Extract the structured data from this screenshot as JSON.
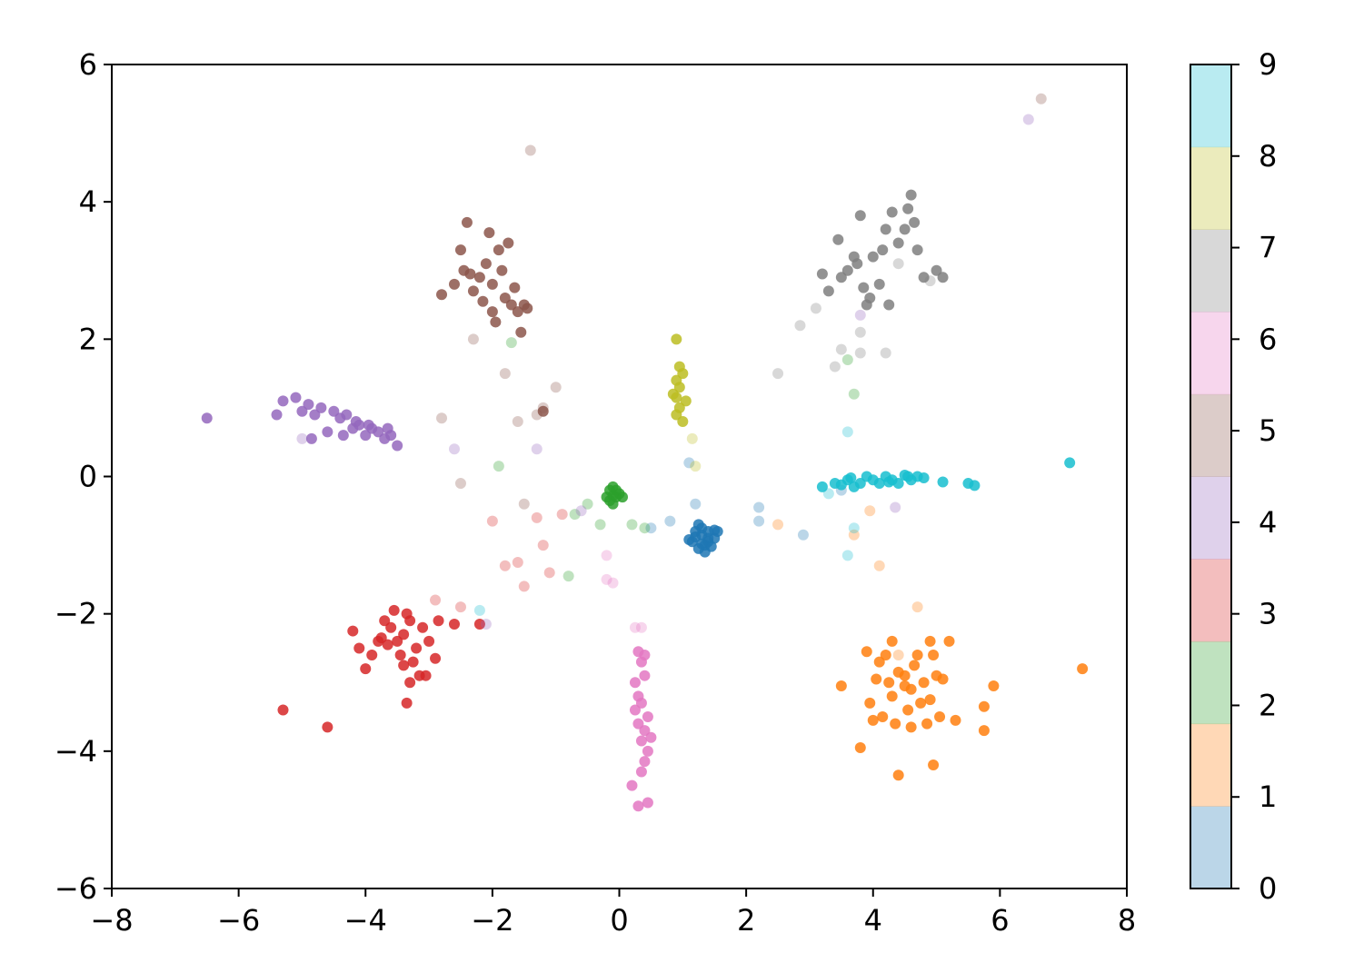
{
  "chart_data": {
    "type": "scatter",
    "xlim": [
      -8,
      8
    ],
    "ylim": [
      -6,
      6
    ],
    "xticks": [
      {
        "value": -8,
        "label": "−8"
      },
      {
        "value": -6,
        "label": "−6"
      },
      {
        "value": -4,
        "label": "−4"
      },
      {
        "value": -2,
        "label": "−2"
      },
      0,
      2,
      4,
      6,
      8
    ],
    "yticks": [
      {
        "value": -6,
        "label": "−6"
      },
      {
        "value": -4,
        "label": "−4"
      },
      {
        "value": -2,
        "label": "−2"
      },
      0,
      2,
      4,
      6
    ],
    "colorbar": {
      "lim": [
        0,
        9
      ],
      "ticks": [
        0,
        1,
        2,
        3,
        4,
        5,
        6,
        7,
        8,
        9
      ],
      "opacity": 0.3,
      "colors": [
        "#1f77b4",
        "#ff7f0e",
        "#2ca02c",
        "#d62728",
        "#9467bd",
        "#8c564b",
        "#e377c2",
        "#7f7f7f",
        "#bcbd22",
        "#17becf"
      ]
    },
    "series": [
      {
        "color": "#1f77b4",
        "opacity": 0.85,
        "x": [
          1.2,
          1.3,
          1.4,
          1.5,
          1.35,
          1.25,
          1.45,
          1.15,
          1.3,
          1.4,
          1.55,
          1.2,
          1.35,
          1.5,
          1.3,
          1.4,
          1.1,
          1.25
        ],
        "y": [
          -0.8,
          -0.85,
          -0.9,
          -0.78,
          -1.0,
          -1.05,
          -1.02,
          -0.95,
          -0.75,
          -0.95,
          -0.8,
          -0.88,
          -1.1,
          -0.9,
          -0.98,
          -0.8,
          -0.92,
          -0.7
        ]
      },
      {
        "color": "#1f77b4",
        "opacity": 0.3,
        "x": [
          0.8,
          1.2,
          2.2,
          2.2,
          1.1,
          0.5,
          2.9,
          3.5
        ],
        "y": [
          -0.65,
          -0.4,
          -0.45,
          -0.65,
          0.2,
          -0.75,
          -0.85,
          -0.2
        ]
      },
      {
        "color": "#ff7f0e",
        "opacity": 0.85,
        "x": [
          4.3,
          4.5,
          4.7,
          4.9,
          5.0,
          4.4,
          4.6,
          4.8,
          4.2,
          4.1,
          3.9,
          4.0,
          4.3,
          4.5,
          5.1,
          5.2,
          4.95,
          4.65,
          4.35,
          4.75,
          5.05,
          4.85,
          4.55,
          4.25,
          3.95,
          4.15,
          5.3,
          5.75,
          4.05,
          4.9,
          4.6,
          7.3,
          5.9,
          3.5,
          3.8,
          4.4,
          4.95,
          5.75
        ],
        "y": [
          -2.4,
          -2.9,
          -2.6,
          -2.4,
          -2.9,
          -2.85,
          -3.1,
          -3.0,
          -2.6,
          -2.7,
          -2.55,
          -3.55,
          -3.2,
          -3.05,
          -2.95,
          -2.4,
          -2.6,
          -2.75,
          -3.6,
          -3.3,
          -3.5,
          -3.6,
          -3.4,
          -3.0,
          -3.3,
          -3.5,
          -3.55,
          -3.35,
          -2.95,
          -3.25,
          -3.65,
          -2.8,
          -3.05,
          -3.05,
          -3.95,
          -4.35,
          -4.2,
          -3.7
        ]
      },
      {
        "color": "#ff7f0e",
        "opacity": 0.3,
        "x": [
          4.4,
          4.7,
          3.95,
          2.5,
          4.1,
          3.7
        ],
        "y": [
          -2.6,
          -1.9,
          -0.5,
          -0.7,
          -1.3,
          -0.85
        ]
      },
      {
        "color": "#2ca02c",
        "opacity": 0.85,
        "x": [
          -0.15,
          -0.1,
          -0.05,
          0.0,
          -0.2,
          -0.1,
          0.05,
          -0.15,
          -0.05,
          -0.1
        ],
        "y": [
          -0.2,
          -0.15,
          -0.3,
          -0.25,
          -0.3,
          -0.4,
          -0.3,
          -0.35,
          -0.2,
          -0.28
        ]
      },
      {
        "color": "#2ca02c",
        "opacity": 0.3,
        "x": [
          -0.5,
          -0.3,
          0.2,
          0.4,
          -0.8,
          -1.9,
          3.6,
          3.7,
          -1.7,
          -0.7
        ],
        "y": [
          -0.4,
          -0.7,
          -0.7,
          -0.75,
          -1.45,
          0.15,
          1.7,
          1.2,
          1.95,
          -0.55
        ]
      },
      {
        "color": "#d62728",
        "opacity": 0.85,
        "x": [
          -3.4,
          -3.3,
          -3.5,
          -3.6,
          -3.2,
          -3.1,
          -3.7,
          -3.8,
          -3.45,
          -3.25,
          -3.55,
          -3.0,
          -2.9,
          -3.9,
          -4.0,
          -4.2,
          -3.35,
          -3.15,
          -3.65,
          -3.4,
          -2.85,
          -3.75,
          -4.1,
          -3.3,
          -3.05,
          -5.3,
          -4.6,
          -2.2,
          -2.6,
          -3.35
        ],
        "y": [
          -2.3,
          -2.1,
          -2.4,
          -2.2,
          -2.5,
          -2.2,
          -2.1,
          -2.4,
          -2.6,
          -2.7,
          -1.95,
          -2.4,
          -2.65,
          -2.6,
          -2.8,
          -2.25,
          -2.0,
          -2.9,
          -2.45,
          -2.75,
          -2.1,
          -2.35,
          -2.5,
          -3.0,
          -2.9,
          -3.4,
          -3.65,
          -2.15,
          -2.15,
          -3.3
        ]
      },
      {
        "color": "#d62728",
        "opacity": 0.3,
        "x": [
          -1.2,
          -1.6,
          -1.8,
          -2.0,
          -1.3,
          -0.9,
          -1.5,
          -2.5,
          -2.9,
          -1.1
        ],
        "y": [
          -1.0,
          -1.25,
          -1.3,
          -0.65,
          -0.6,
          -0.55,
          -1.6,
          -1.9,
          -1.8,
          -1.4
        ]
      },
      {
        "color": "#9467bd",
        "opacity": 0.85,
        "x": [
          -5.4,
          -5.3,
          -5.1,
          -5.0,
          -4.9,
          -4.8,
          -4.7,
          -4.6,
          -4.5,
          -4.4,
          -4.3,
          -4.2,
          -4.1,
          -4.0,
          -3.9,
          -3.8,
          -3.7,
          -3.6,
          -3.5,
          -4.15,
          -4.35,
          -4.85,
          -3.95,
          -3.65,
          -6.5
        ],
        "y": [
          0.9,
          1.1,
          1.15,
          0.95,
          1.05,
          0.9,
          1.0,
          0.65,
          0.95,
          0.85,
          0.9,
          0.7,
          0.75,
          0.6,
          0.7,
          0.65,
          0.55,
          0.6,
          0.45,
          0.8,
          0.6,
          0.55,
          0.75,
          0.7,
          0.85
        ]
      },
      {
        "color": "#9467bd",
        "opacity": 0.3,
        "x": [
          6.45,
          -2.6,
          -1.3,
          -2.1,
          3.8,
          4.35,
          -0.6,
          -5.0
        ],
        "y": [
          5.2,
          0.4,
          0.4,
          -2.15,
          2.35,
          -0.45,
          -0.5,
          0.55
        ]
      },
      {
        "color": "#8c564b",
        "opacity": 0.85,
        "x": [
          -2.0,
          -2.2,
          -1.8,
          -1.9,
          -2.1,
          -2.3,
          -1.7,
          -1.6,
          -2.4,
          -2.5,
          -1.5,
          -2.0,
          -1.85,
          -2.15,
          -1.95,
          -2.6,
          -2.8,
          -2.35,
          -1.75,
          -1.55,
          -2.05,
          -1.65,
          -2.45,
          -1.45,
          -1.2
        ],
        "y": [
          2.8,
          2.9,
          2.6,
          3.3,
          3.1,
          2.7,
          2.5,
          2.4,
          3.7,
          3.3,
          2.5,
          2.4,
          3.0,
          2.55,
          2.25,
          2.8,
          2.65,
          2.95,
          3.4,
          2.1,
          3.55,
          2.75,
          3.0,
          2.45,
          0.95
        ]
      },
      {
        "color": "#8c564b",
        "opacity": 0.3,
        "x": [
          -1.4,
          6.65,
          -1.2,
          -1.6,
          -2.3,
          -1.8,
          -2.8,
          -1.5,
          -2.5,
          -1.3,
          -1.0
        ],
        "y": [
          4.75,
          5.5,
          1.0,
          0.8,
          2.0,
          1.5,
          0.85,
          -0.4,
          -0.1,
          0.9,
          1.3
        ]
      },
      {
        "color": "#e377c2",
        "opacity": 0.85,
        "x": [
          0.3,
          0.35,
          0.4,
          0.25,
          0.3,
          0.35,
          0.45,
          0.3,
          0.4,
          0.35,
          0.5,
          0.45,
          0.4,
          0.35,
          0.2,
          0.3,
          0.45,
          0.4,
          0.25
        ],
        "y": [
          -2.55,
          -2.7,
          -2.9,
          -3.0,
          -3.2,
          -3.3,
          -3.5,
          -3.6,
          -3.7,
          -3.85,
          -3.8,
          -4.0,
          -4.15,
          -4.3,
          -4.5,
          -4.8,
          -4.75,
          -2.6,
          -3.4
        ]
      },
      {
        "color": "#e377c2",
        "opacity": 0.3,
        "x": [
          -0.2,
          -0.1,
          -0.2,
          0.25,
          0.35
        ],
        "y": [
          -1.15,
          -1.55,
          -1.5,
          -2.2,
          -2.2
        ]
      },
      {
        "color": "#7f7f7f",
        "opacity": 0.85,
        "x": [
          4.0,
          4.2,
          3.8,
          3.6,
          4.4,
          4.6,
          3.5,
          3.3,
          3.9,
          4.1,
          4.3,
          4.5,
          4.7,
          3.7,
          3.2,
          5.0,
          4.8,
          3.95,
          4.25,
          3.75,
          3.45,
          4.55,
          3.85,
          4.15,
          5.1,
          4.65
        ],
        "y": [
          3.2,
          3.6,
          3.8,
          3.0,
          3.4,
          4.1,
          2.9,
          2.7,
          2.5,
          2.8,
          3.85,
          3.6,
          3.3,
          3.2,
          2.95,
          3.0,
          2.9,
          2.6,
          2.5,
          3.1,
          3.45,
          3.9,
          2.75,
          3.3,
          2.9,
          3.7
        ]
      },
      {
        "color": "#7f7f7f",
        "opacity": 0.3,
        "x": [
          2.85,
          2.5,
          3.5,
          3.8,
          4.2,
          3.4,
          3.8,
          3.1,
          4.4,
          4.9
        ],
        "y": [
          2.2,
          1.5,
          1.85,
          1.8,
          1.8,
          1.6,
          2.1,
          2.45,
          3.1,
          2.85
        ]
      },
      {
        "color": "#bcbd22",
        "opacity": 0.85,
        "x": [
          0.9,
          0.95,
          1.0,
          0.9,
          0.85,
          1.05,
          0.95,
          0.9,
          1.0,
          0.95,
          0.9
        ],
        "y": [
          2.0,
          1.6,
          1.5,
          1.4,
          1.2,
          1.1,
          1.0,
          0.9,
          0.8,
          1.3,
          1.15
        ]
      },
      {
        "color": "#bcbd22",
        "opacity": 0.3,
        "x": [
          1.15,
          1.2
        ],
        "y": [
          0.55,
          0.15
        ]
      },
      {
        "color": "#17becf",
        "opacity": 0.85,
        "x": [
          3.2,
          3.4,
          3.6,
          3.7,
          3.8,
          3.9,
          4.0,
          4.1,
          4.2,
          4.3,
          4.4,
          4.5,
          4.6,
          4.7,
          4.8,
          5.1,
          5.5,
          5.6,
          3.5,
          3.65,
          4.25,
          4.55,
          7.1
        ],
        "y": [
          -0.15,
          -0.1,
          -0.05,
          -0.15,
          -0.1,
          0.0,
          -0.05,
          -0.1,
          0.0,
          -0.05,
          -0.1,
          0.02,
          -0.05,
          0.0,
          -0.02,
          -0.08,
          -0.1,
          -0.13,
          -0.12,
          -0.02,
          -0.08,
          0.0,
          0.2
        ]
      },
      {
        "color": "#17becf",
        "opacity": 0.3,
        "x": [
          3.6,
          -2.2,
          3.7,
          3.6,
          3.3
        ],
        "y": [
          0.65,
          -1.95,
          -0.75,
          -1.15,
          -0.25
        ]
      }
    ]
  }
}
